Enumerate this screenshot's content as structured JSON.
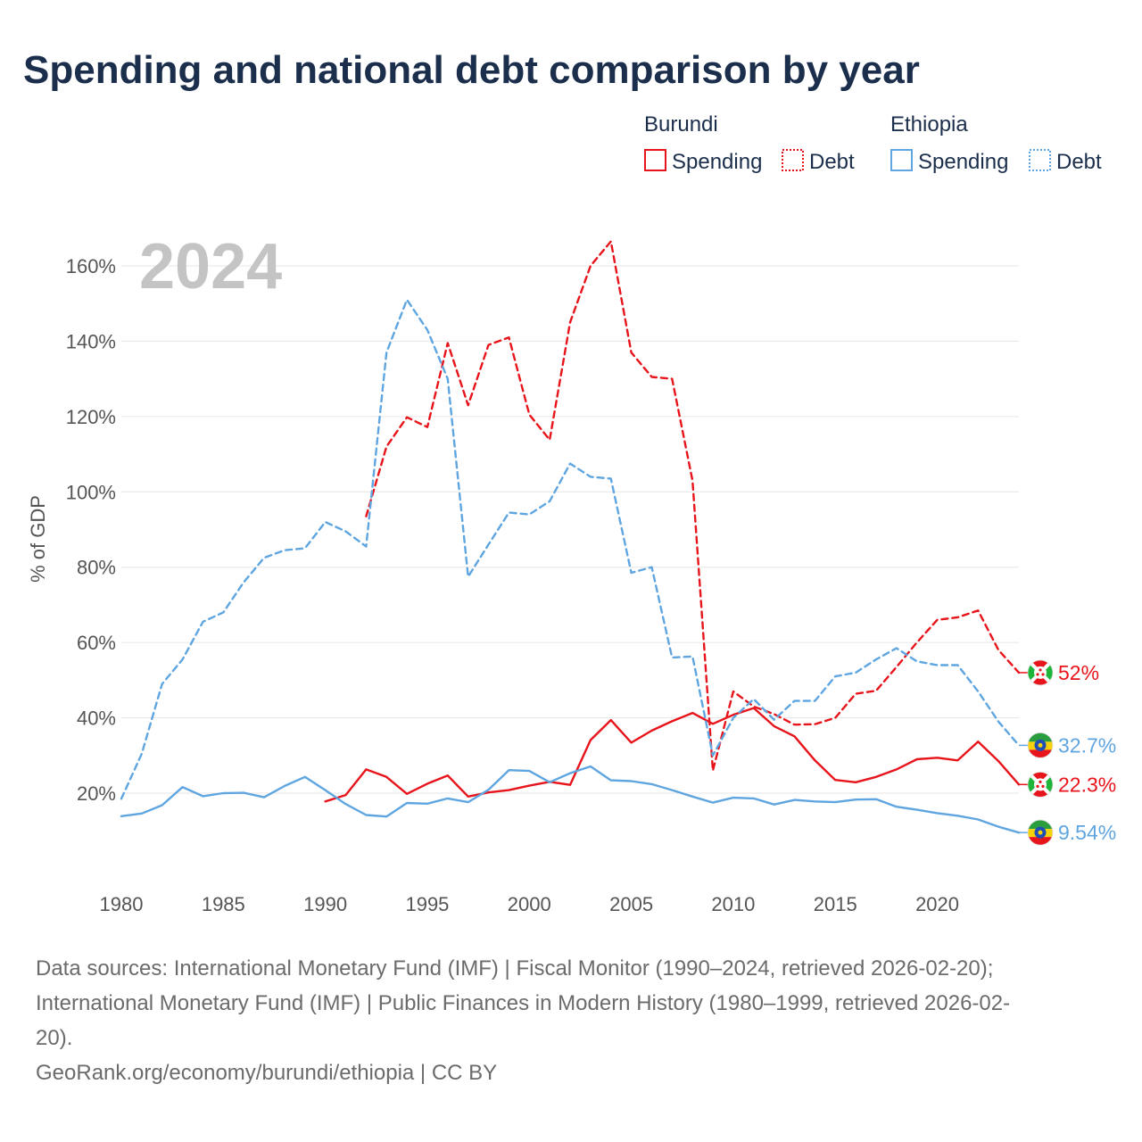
{
  "title": "Spending and national debt comparison by year",
  "year_label": "2024",
  "legend": {
    "groups": [
      {
        "country": "Burundi",
        "color": "#e8141b",
        "items": [
          {
            "label": "Spending",
            "style": "solid"
          },
          {
            "label": "Debt",
            "style": "dotted"
          }
        ]
      },
      {
        "country": "Ethiopia",
        "color": "#5fa5e0",
        "items": [
          {
            "label": "Spending",
            "style": "solid"
          },
          {
            "label": "Debt",
            "style": "dotted"
          }
        ]
      }
    ]
  },
  "chart_data": {
    "type": "line",
    "title": "Spending and national debt comparison by year",
    "xlabel": "",
    "ylabel": "% of GDP",
    "xlim": [
      1980,
      2024
    ],
    "ylim": [
      0,
      168
    ],
    "x_ticks": [
      1980,
      1985,
      1990,
      1995,
      2000,
      2005,
      2010,
      2015,
      2020
    ],
    "x_tick_labels": [
      "1980",
      "1985",
      "1990",
      "1995",
      "2000",
      "2005",
      "2010",
      "2015",
      "2020"
    ],
    "y_ticks": [
      20,
      40,
      60,
      80,
      100,
      120,
      140,
      160
    ],
    "y_tick_labels": [
      "20%",
      "40%",
      "60%",
      "80%",
      "100%",
      "120%",
      "140%",
      "160%"
    ],
    "grid": true,
    "series": [
      {
        "name": "Burundi Spending",
        "country": "Burundi",
        "metric": "Spending",
        "style": "solid",
        "color": "#e8141b",
        "start": 1990,
        "values": [
          17.8,
          19.5,
          26.3,
          24.3,
          19.8,
          22.5,
          24.7,
          19.1,
          20.2,
          20.8,
          22.0,
          23.0,
          22.2,
          34.1,
          39.4,
          33.4,
          36.6,
          39.1,
          41.3,
          38.4,
          40.8,
          42.6,
          37.8,
          35.1,
          28.7,
          23.5,
          22.9,
          24.3,
          26.3,
          29.0,
          29.4,
          28.7,
          33.7,
          28.5,
          22.3
        ],
        "end_label": "22.3%"
      },
      {
        "name": "Burundi Debt",
        "country": "Burundi",
        "metric": "Debt",
        "style": "dashed",
        "color": "#e8141b",
        "start": 1992,
        "values": [
          93.5,
          112.0,
          119.8,
          117.2,
          139.5,
          123.0,
          139.0,
          141.0,
          120.5,
          113.8,
          145.0,
          160.0,
          166.5,
          137.0,
          130.5,
          130.0,
          103.0,
          26.0,
          47.0,
          43.0,
          41.0,
          38.2,
          38.3,
          40.0,
          46.4,
          47.2,
          53.5,
          60.0,
          66.0,
          66.7,
          68.5,
          58.0,
          52.0
        ],
        "end_label": "52%"
      },
      {
        "name": "Ethiopia Spending",
        "country": "Ethiopia",
        "metric": "Spending",
        "style": "solid",
        "color": "#5fa5e0",
        "start": 1980,
        "values": [
          13.9,
          14.6,
          16.8,
          21.6,
          19.2,
          20.0,
          20.1,
          18.9,
          21.9,
          24.3,
          20.8,
          17.1,
          14.2,
          13.8,
          17.4,
          17.2,
          18.6,
          17.6,
          20.9,
          26.1,
          25.9,
          22.9,
          25.3,
          27.1,
          23.4,
          23.2,
          22.4,
          20.8,
          19.1,
          17.5,
          18.8,
          18.6,
          17.0,
          18.2,
          17.8,
          17.6,
          18.3,
          18.4,
          16.4,
          15.6,
          14.7,
          14.0,
          13.0,
          11.1,
          9.54
        ],
        "end_label": "9.54%"
      },
      {
        "name": "Ethiopia Debt",
        "country": "Ethiopia",
        "metric": "Debt",
        "style": "dashed",
        "color": "#5fa5e0",
        "start": 1980,
        "values": [
          18.5,
          30.5,
          49.0,
          55.5,
          65.5,
          68.0,
          76.0,
          82.5,
          84.5,
          85.0,
          92.0,
          89.5,
          85.5,
          137.0,
          151.0,
          143.0,
          130.0,
          77.5,
          86.0,
          94.5,
          94.0,
          97.5,
          107.5,
          104.0,
          103.5,
          78.5,
          80.0,
          56.0,
          56.3,
          30.0,
          40.0,
          45.0,
          39.5,
          44.5,
          44.5,
          51.0,
          52.0,
          55.5,
          58.5,
          55.0,
          54.0,
          54.0,
          47.0,
          39.0,
          32.7
        ],
        "end_label": "32.7%"
      }
    ]
  },
  "sources": [
    "Data sources: International Monetary Fund (IMF) | Fiscal Monitor (1990–2024, retrieved 2026-02-20);",
    "International Monetary Fund (IMF) | Public Finances in Modern History (1980–1999, retrieved 2026-02-",
    "20).",
    "GeoRank.org/economy/burundi/ethiopia | CC BY"
  ]
}
